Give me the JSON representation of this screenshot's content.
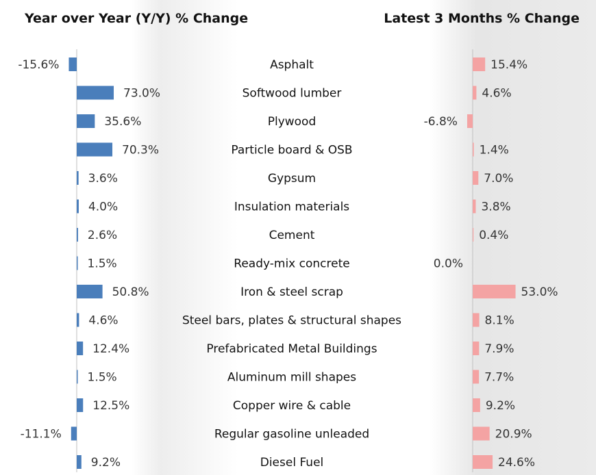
{
  "titles": {
    "left": "Year over Year (Y/Y) % Change",
    "right": "Latest 3 Months % Change"
  },
  "colors": {
    "left_bar": "#4a7ebb",
    "right_bar": "#f4a3a3",
    "axis": "#bfbfbf",
    "text": "#333333"
  },
  "chart_data": {
    "type": "bar",
    "orientation": "horizontal",
    "categories": [
      "Asphalt",
      "Softwood lumber",
      "Plywood",
      "Particle board & OSB",
      "Gypsum",
      "Insulation materials",
      "Cement",
      "Ready-mix concrete",
      "Iron & steel scrap",
      "Steel bars, plates & structural shapes",
      "Prefabricated Metal Buildings",
      "Aluminum mill shapes",
      "Copper wire & cable",
      "Regular gasoline unleaded",
      "Diesel Fuel"
    ],
    "series": [
      {
        "name": "Year over Year (Y/Y) % Change",
        "values": [
          -15.6,
          73.0,
          35.6,
          70.3,
          3.6,
          4.0,
          2.6,
          1.5,
          50.8,
          4.6,
          12.4,
          1.5,
          12.5,
          -11.1,
          9.2
        ],
        "labels": [
          "-15.6%",
          "73.0%",
          "35.6%",
          "70.3%",
          "3.6%",
          "4.0%",
          "2.6%",
          "1.5%",
          "50.8%",
          "4.6%",
          "12.4%",
          "1.5%",
          "12.5%",
          "-11.1%",
          "9.2%"
        ]
      },
      {
        "name": "Latest 3 Months % Change",
        "values": [
          15.4,
          4.6,
          -6.8,
          1.4,
          7.0,
          3.8,
          0.4,
          0.0,
          53.0,
          8.1,
          7.9,
          7.7,
          9.2,
          20.9,
          24.6
        ],
        "labels": [
          "15.4%",
          "4.6%",
          "-6.8%",
          "1.4%",
          "7.0%",
          "3.8%",
          "0.4%",
          "0.0%",
          "53.0%",
          "8.1%",
          "7.9%",
          "7.7%",
          "9.2%",
          "20.9%",
          "24.6%"
        ]
      }
    ],
    "unit": "%",
    "grid": false,
    "legend": "none"
  }
}
